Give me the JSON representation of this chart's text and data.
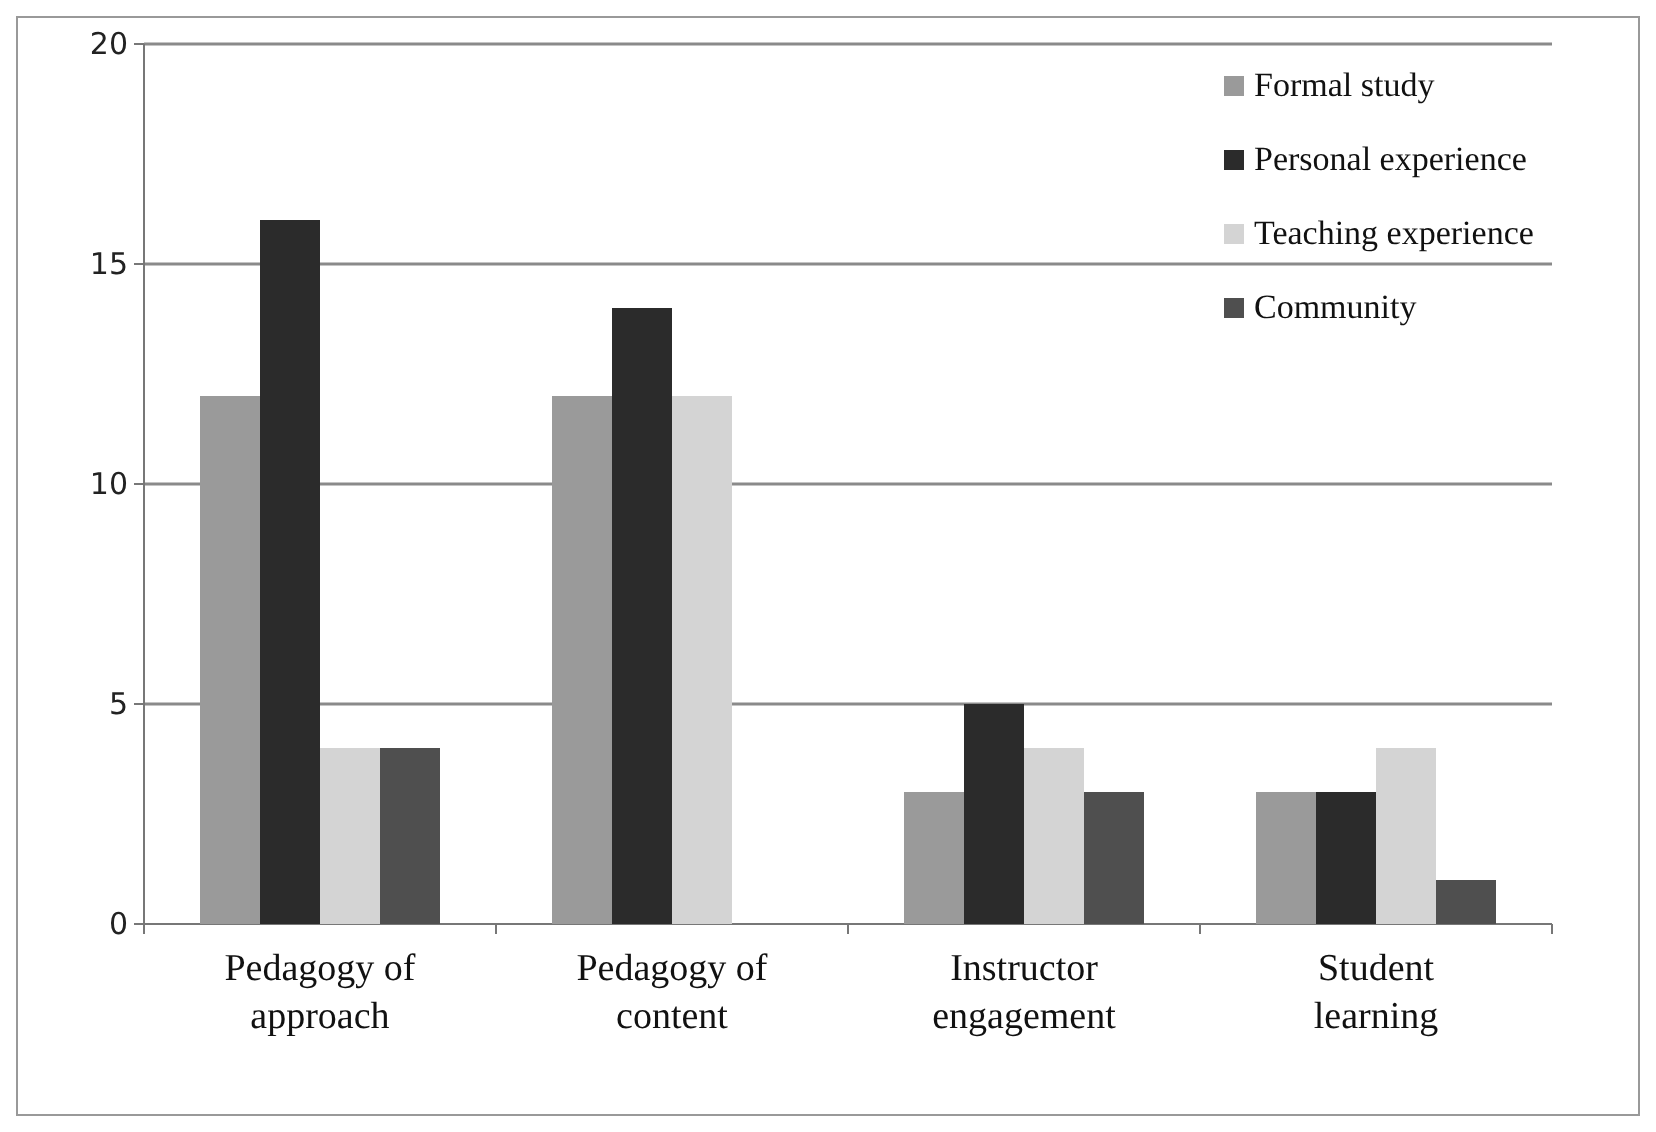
{
  "chart_data": {
    "type": "bar",
    "categories": [
      "Pedagogy of approach",
      "Pedagogy of content",
      "Instructor engagement",
      "Student learning"
    ],
    "series": [
      {
        "name": "Formal study",
        "color": "#9a9a9a",
        "values": [
          12,
          12,
          3,
          3
        ]
      },
      {
        "name": "Personal experience",
        "color": "#2b2b2b",
        "values": [
          16,
          14,
          5,
          3
        ]
      },
      {
        "name": "Teaching experience",
        "color": "#d4d4d4",
        "values": [
          4,
          12,
          4,
          4
        ]
      },
      {
        "name": "Community",
        "color": "#4f4f4f",
        "values": [
          4,
          0,
          3,
          1
        ]
      }
    ],
    "ylim": [
      0,
      20
    ],
    "yticks": [
      0,
      5,
      10,
      15,
      20
    ],
    "grid": "y",
    "legend": "top right"
  }
}
